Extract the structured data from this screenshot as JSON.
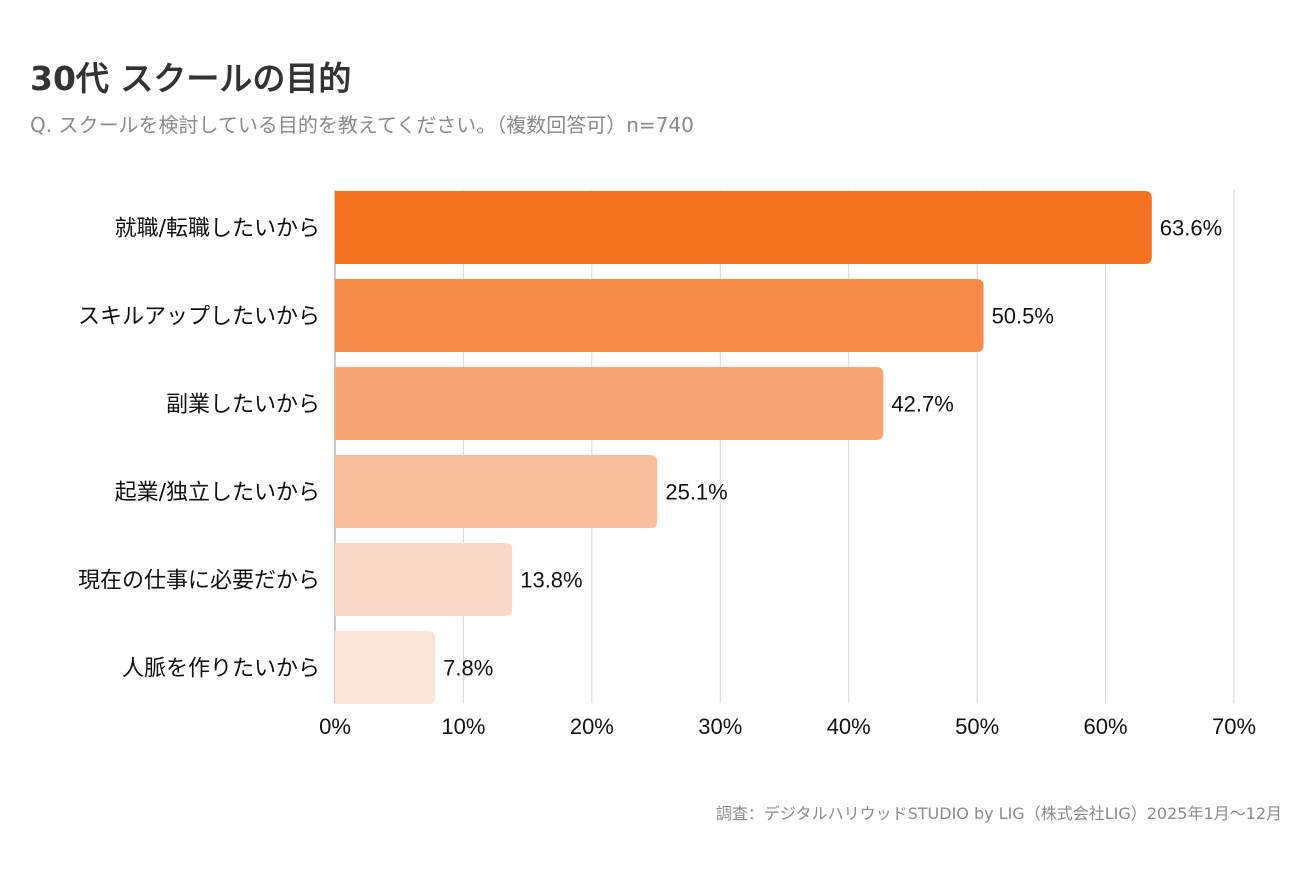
{
  "header": {
    "title": "30代 スクールの目的",
    "subtitle": "Q. スクールを検討している目的を教えてください。（複数回答可）n=740"
  },
  "footer": {
    "source": "調査：デジタルハリウッドSTUDIO by LIG（株式会社LIG）2025年1月〜12月"
  },
  "chart_data": {
    "type": "bar",
    "orientation": "horizontal",
    "categories": [
      "就職/転職したいから",
      "スキルアップしたいから",
      "副業したいから",
      "起業/独立したいから",
      "現在の仕事に必要だから",
      "人脈を作りたいから"
    ],
    "values": [
      63.6,
      50.5,
      42.7,
      25.1,
      13.8,
      7.8
    ],
    "value_labels": [
      "63.6%",
      "50.5%",
      "42.7%",
      "25.1%",
      "13.8%",
      "7.8%"
    ],
    "bar_colors": [
      "#f47220",
      "#f68b4a",
      "#f7a673",
      "#f9bf9c",
      "#fad8c5",
      "#fce4d8"
    ],
    "xlim": [
      0,
      70
    ],
    "xticks": [
      0,
      10,
      20,
      30,
      40,
      50,
      60,
      70
    ],
    "xtick_labels": [
      "0%",
      "10%",
      "20%",
      "30%",
      "40%",
      "50%",
      "60%",
      "70%"
    ],
    "grid": true,
    "legend": "none"
  }
}
